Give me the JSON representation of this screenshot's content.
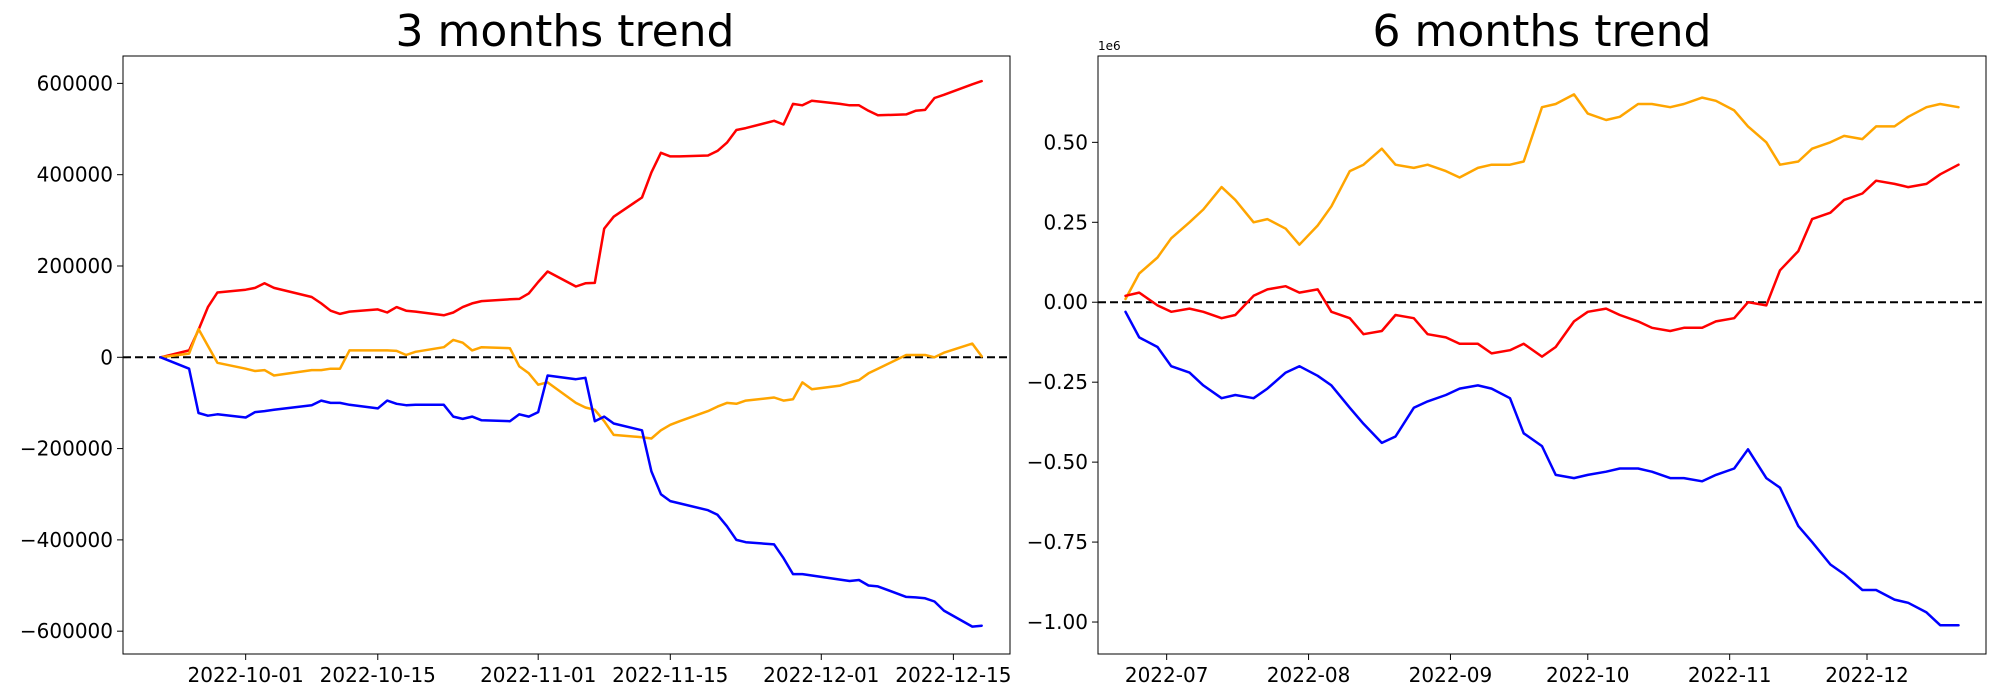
{
  "chart_data": [
    {
      "type": "line",
      "title": "3 months trend",
      "xlabel": "",
      "ylabel": "",
      "x_axis_type": "date",
      "xlim": [
        "2022-09-18",
        "2022-12-21"
      ],
      "ylim": [
        -650000,
        660000
      ],
      "grid": false,
      "legend": "none",
      "x_ticks": [
        "2022-10-01",
        "2022-10-15",
        "2022-11-01",
        "2022-11-15",
        "2022-12-01",
        "2022-12-15"
      ],
      "y_ticks": [
        600000,
        400000,
        200000,
        0,
        -200000,
        -400000,
        -600000
      ],
      "y_tick_labels": [
        "600000",
        "400000",
        "200000",
        "0",
        "−200000",
        "−400000",
        "−600000"
      ],
      "reference_line": {
        "y": 0,
        "style": "dashed",
        "color": "#000000"
      },
      "series": [
        {
          "color": "#ff0000",
          "x": [
            "2022-09-22",
            "2022-09-25",
            "2022-09-26",
            "2022-09-27",
            "2022-09-28",
            "2022-10-01",
            "2022-10-02",
            "2022-10-03",
            "2022-10-04",
            "2022-10-08",
            "2022-10-09",
            "2022-10-10",
            "2022-10-11",
            "2022-10-12",
            "2022-10-15",
            "2022-10-16",
            "2022-10-17",
            "2022-10-18",
            "2022-10-19",
            "2022-10-22",
            "2022-10-23",
            "2022-10-24",
            "2022-10-25",
            "2022-10-26",
            "2022-10-29",
            "2022-10-30",
            "2022-10-31",
            "2022-11-01",
            "2022-11-02",
            "2022-11-05",
            "2022-11-06",
            "2022-11-07",
            "2022-11-08",
            "2022-11-09",
            "2022-11-12",
            "2022-11-13",
            "2022-11-14",
            "2022-11-15",
            "2022-11-16",
            "2022-11-19",
            "2022-11-20",
            "2022-11-21",
            "2022-11-22",
            "2022-11-23",
            "2022-11-26",
            "2022-11-27",
            "2022-11-28",
            "2022-11-29",
            "2022-11-30",
            "2022-12-03",
            "2022-12-04",
            "2022-12-05",
            "2022-12-06",
            "2022-12-07",
            "2022-12-10",
            "2022-12-11",
            "2022-12-12",
            "2022-12-13",
            "2022-12-14",
            "2022-12-17",
            "2022-12-18"
          ],
          "y": [
            0,
            15000,
            60000,
            110000,
            142000,
            148000,
            152000,
            162000,
            152000,
            132000,
            118000,
            102000,
            95000,
            100000,
            105000,
            98000,
            110000,
            102000,
            100000,
            92000,
            98000,
            110000,
            118000,
            123000,
            127000,
            128000,
            140000,
            165000,
            188000,
            155000,
            162000,
            163000,
            282000,
            308000,
            350000,
            405000,
            448000,
            440000,
            440000,
            442000,
            452000,
            470000,
            498000,
            502000,
            518000,
            510000,
            555000,
            552000,
            562000,
            555000,
            552000,
            552000,
            540000,
            530000,
            532000,
            540000,
            542000,
            568000,
            575000,
            598000,
            605000
          ]
        },
        {
          "color": "#ffa500",
          "x": [
            "2022-09-22",
            "2022-09-25",
            "2022-09-26",
            "2022-09-27",
            "2022-09-28",
            "2022-10-01",
            "2022-10-02",
            "2022-10-03",
            "2022-10-04",
            "2022-10-08",
            "2022-10-09",
            "2022-10-10",
            "2022-10-11",
            "2022-10-12",
            "2022-10-15",
            "2022-10-16",
            "2022-10-17",
            "2022-10-18",
            "2022-10-19",
            "2022-10-22",
            "2022-10-23",
            "2022-10-24",
            "2022-10-25",
            "2022-10-26",
            "2022-10-29",
            "2022-10-30",
            "2022-10-31",
            "2022-11-01",
            "2022-11-02",
            "2022-11-05",
            "2022-11-06",
            "2022-11-07",
            "2022-11-08",
            "2022-11-09",
            "2022-11-12",
            "2022-11-13",
            "2022-11-14",
            "2022-11-15",
            "2022-11-16",
            "2022-11-19",
            "2022-11-20",
            "2022-11-21",
            "2022-11-22",
            "2022-11-23",
            "2022-11-26",
            "2022-11-27",
            "2022-11-28",
            "2022-11-29",
            "2022-11-30",
            "2022-12-03",
            "2022-12-04",
            "2022-12-05",
            "2022-12-06",
            "2022-12-07",
            "2022-12-10",
            "2022-12-11",
            "2022-12-12",
            "2022-12-13",
            "2022-12-14",
            "2022-12-17",
            "2022-12-18"
          ],
          "y": [
            0,
            8000,
            62000,
            25000,
            -12000,
            -25000,
            -30000,
            -28000,
            -40000,
            -28000,
            -28000,
            -25000,
            -25000,
            15000,
            15000,
            15000,
            14000,
            5000,
            12000,
            22000,
            38000,
            32000,
            15000,
            22000,
            20000,
            -20000,
            -35000,
            -60000,
            -55000,
            -100000,
            -110000,
            -115000,
            -140000,
            -170000,
            -175000,
            -178000,
            -160000,
            -148000,
            -140000,
            -118000,
            -108000,
            -100000,
            -102000,
            -95000,
            -88000,
            -95000,
            -92000,
            -55000,
            -70000,
            -62000,
            -55000,
            -50000,
            -35000,
            -25000,
            5000,
            5000,
            5000,
            0,
            10000,
            30000,
            2000
          ]
        },
        {
          "color": "#0000ff",
          "x": [
            "2022-09-22",
            "2022-09-25",
            "2022-09-26",
            "2022-09-27",
            "2022-09-28",
            "2022-10-01",
            "2022-10-02",
            "2022-10-03",
            "2022-10-04",
            "2022-10-08",
            "2022-10-09",
            "2022-10-10",
            "2022-10-11",
            "2022-10-12",
            "2022-10-15",
            "2022-10-16",
            "2022-10-17",
            "2022-10-18",
            "2022-10-19",
            "2022-10-22",
            "2022-10-23",
            "2022-10-24",
            "2022-10-25",
            "2022-10-26",
            "2022-10-29",
            "2022-10-30",
            "2022-10-31",
            "2022-11-01",
            "2022-11-02",
            "2022-11-05",
            "2022-11-06",
            "2022-11-07",
            "2022-11-08",
            "2022-11-09",
            "2022-11-12",
            "2022-11-13",
            "2022-11-14",
            "2022-11-15",
            "2022-11-16",
            "2022-11-19",
            "2022-11-20",
            "2022-11-21",
            "2022-11-22",
            "2022-11-23",
            "2022-11-26",
            "2022-11-27",
            "2022-11-28",
            "2022-11-29",
            "2022-11-30",
            "2022-12-03",
            "2022-12-04",
            "2022-12-05",
            "2022-12-06",
            "2022-12-07",
            "2022-12-10",
            "2022-12-11",
            "2022-12-12",
            "2022-12-13",
            "2022-12-14",
            "2022-12-17",
            "2022-12-18"
          ],
          "y": [
            0,
            -25000,
            -122000,
            -128000,
            -125000,
            -132000,
            -120000,
            -118000,
            -115000,
            -105000,
            -95000,
            -100000,
            -100000,
            -104000,
            -112000,
            -95000,
            -102000,
            -105000,
            -104000,
            -104000,
            -130000,
            -135000,
            -130000,
            -138000,
            -140000,
            -125000,
            -130000,
            -120000,
            -40000,
            -48000,
            -45000,
            -140000,
            -130000,
            -145000,
            -160000,
            -250000,
            -300000,
            -315000,
            -320000,
            -335000,
            -345000,
            -370000,
            -400000,
            -405000,
            -410000,
            -440000,
            -475000,
            -475000,
            -478000,
            -487000,
            -490000,
            -488000,
            -500000,
            -502000,
            -525000,
            -526000,
            -528000,
            -535000,
            -555000,
            -590000,
            -588000
          ]
        }
      ]
    },
    {
      "type": "line",
      "title": "6 months trend",
      "xlabel": "",
      "ylabel": "",
      "x_axis_type": "date",
      "xlim": [
        "2022-06-16",
        "2022-12-27"
      ],
      "ylim": [
        -1.1,
        0.77
      ],
      "y_scale_label": "1e6",
      "grid": false,
      "legend": "none",
      "x_ticks": [
        "2022-07-01",
        "2022-08-01",
        "2022-09-01",
        "2022-10-01",
        "2022-11-01",
        "2022-12-01"
      ],
      "x_tick_labels": [
        "2022-07",
        "2022-08",
        "2022-09",
        "2022-10",
        "2022-11",
        "2022-12"
      ],
      "y_ticks": [
        0.5,
        0.25,
        0.0,
        -0.25,
        -0.5,
        -0.75,
        -1.0
      ],
      "y_tick_labels": [
        "0.50",
        "0.25",
        "0.00",
        "−0.25",
        "−0.50",
        "−0.75",
        "−1.00"
      ],
      "reference_line": {
        "y": 0,
        "style": "dashed",
        "color": "#000000"
      },
      "series": [
        {
          "color": "#ffa500",
          "x": [
            "2022-06-22",
            "2022-06-25",
            "2022-06-29",
            "2022-07-02",
            "2022-07-06",
            "2022-07-09",
            "2022-07-13",
            "2022-07-16",
            "2022-07-20",
            "2022-07-23",
            "2022-07-27",
            "2022-07-30",
            "2022-08-03",
            "2022-08-06",
            "2022-08-10",
            "2022-08-13",
            "2022-08-17",
            "2022-08-20",
            "2022-08-24",
            "2022-08-27",
            "2022-08-31",
            "2022-09-03",
            "2022-09-07",
            "2022-09-10",
            "2022-09-14",
            "2022-09-17",
            "2022-09-21",
            "2022-09-24",
            "2022-09-28",
            "2022-10-01",
            "2022-10-05",
            "2022-10-08",
            "2022-10-12",
            "2022-10-15",
            "2022-10-19",
            "2022-10-22",
            "2022-10-26",
            "2022-10-29",
            "2022-11-02",
            "2022-11-05",
            "2022-11-09",
            "2022-11-12",
            "2022-11-16",
            "2022-11-19",
            "2022-11-23",
            "2022-11-26",
            "2022-11-30",
            "2022-12-03",
            "2022-12-07",
            "2022-12-10",
            "2022-12-14",
            "2022-12-17",
            "2022-12-21"
          ],
          "y": [
            0.01,
            0.09,
            0.14,
            0.2,
            0.25,
            0.29,
            0.36,
            0.32,
            0.25,
            0.26,
            0.23,
            0.18,
            0.24,
            0.3,
            0.41,
            0.43,
            0.48,
            0.43,
            0.42,
            0.43,
            0.41,
            0.39,
            0.42,
            0.43,
            0.43,
            0.44,
            0.61,
            0.62,
            0.65,
            0.59,
            0.57,
            0.58,
            0.62,
            0.62,
            0.61,
            0.62,
            0.64,
            0.63,
            0.6,
            0.55,
            0.5,
            0.43,
            0.44,
            0.48,
            0.5,
            0.52,
            0.51,
            0.55,
            0.55,
            0.58,
            0.61,
            0.62,
            0.61
          ]
        },
        {
          "color": "#ff0000",
          "x": [
            "2022-06-22",
            "2022-06-25",
            "2022-06-29",
            "2022-07-02",
            "2022-07-06",
            "2022-07-09",
            "2022-07-13",
            "2022-07-16",
            "2022-07-20",
            "2022-07-23",
            "2022-07-27",
            "2022-07-30",
            "2022-08-03",
            "2022-08-06",
            "2022-08-10",
            "2022-08-13",
            "2022-08-17",
            "2022-08-20",
            "2022-08-24",
            "2022-08-27",
            "2022-08-31",
            "2022-09-03",
            "2022-09-07",
            "2022-09-10",
            "2022-09-14",
            "2022-09-17",
            "2022-09-21",
            "2022-09-24",
            "2022-09-28",
            "2022-10-01",
            "2022-10-05",
            "2022-10-08",
            "2022-10-12",
            "2022-10-15",
            "2022-10-19",
            "2022-10-22",
            "2022-10-26",
            "2022-10-29",
            "2022-11-02",
            "2022-11-05",
            "2022-11-09",
            "2022-11-12",
            "2022-11-16",
            "2022-11-19",
            "2022-11-23",
            "2022-11-26",
            "2022-11-30",
            "2022-12-03",
            "2022-12-07",
            "2022-12-10",
            "2022-12-14",
            "2022-12-17",
            "2022-12-21"
          ],
          "y": [
            0.02,
            0.03,
            -0.01,
            -0.03,
            -0.02,
            -0.03,
            -0.05,
            -0.04,
            0.02,
            0.04,
            0.05,
            0.03,
            0.04,
            -0.03,
            -0.05,
            -0.1,
            -0.09,
            -0.04,
            -0.05,
            -0.1,
            -0.11,
            -0.13,
            -0.13,
            -0.16,
            -0.15,
            -0.13,
            -0.17,
            -0.14,
            -0.06,
            -0.03,
            -0.02,
            -0.04,
            -0.06,
            -0.08,
            -0.09,
            -0.08,
            -0.08,
            -0.06,
            -0.05,
            0.0,
            -0.01,
            0.1,
            0.16,
            0.26,
            0.28,
            0.32,
            0.34,
            0.38,
            0.37,
            0.36,
            0.37,
            0.4,
            0.43
          ]
        },
        {
          "color": "#0000ff",
          "x": [
            "2022-06-22",
            "2022-06-25",
            "2022-06-29",
            "2022-07-02",
            "2022-07-06",
            "2022-07-09",
            "2022-07-13",
            "2022-07-16",
            "2022-07-20",
            "2022-07-23",
            "2022-07-27",
            "2022-07-30",
            "2022-08-03",
            "2022-08-06",
            "2022-08-10",
            "2022-08-13",
            "2022-08-17",
            "2022-08-20",
            "2022-08-24",
            "2022-08-27",
            "2022-08-31",
            "2022-09-03",
            "2022-09-07",
            "2022-09-10",
            "2022-09-14",
            "2022-09-17",
            "2022-09-21",
            "2022-09-24",
            "2022-09-28",
            "2022-10-01",
            "2022-10-05",
            "2022-10-08",
            "2022-10-12",
            "2022-10-15",
            "2022-10-19",
            "2022-10-22",
            "2022-10-26",
            "2022-10-29",
            "2022-11-02",
            "2022-11-05",
            "2022-11-09",
            "2022-11-12",
            "2022-11-16",
            "2022-11-19",
            "2022-11-23",
            "2022-11-26",
            "2022-11-30",
            "2022-12-03",
            "2022-12-07",
            "2022-12-10",
            "2022-12-14",
            "2022-12-17",
            "2022-12-21"
          ],
          "y": [
            -0.03,
            -0.11,
            -0.14,
            -0.2,
            -0.22,
            -0.26,
            -0.3,
            -0.29,
            -0.3,
            -0.27,
            -0.22,
            -0.2,
            -0.23,
            -0.26,
            -0.33,
            -0.38,
            -0.44,
            -0.42,
            -0.33,
            -0.31,
            -0.29,
            -0.27,
            -0.26,
            -0.27,
            -0.3,
            -0.41,
            -0.45,
            -0.54,
            -0.55,
            -0.54,
            -0.53,
            -0.52,
            -0.52,
            -0.53,
            -0.55,
            -0.55,
            -0.56,
            -0.54,
            -0.52,
            -0.46,
            -0.55,
            -0.58,
            -0.7,
            -0.75,
            -0.82,
            -0.85,
            -0.9,
            -0.9,
            -0.93,
            -0.94,
            -0.97,
            -1.01,
            -1.01
          ]
        }
      ]
    }
  ]
}
